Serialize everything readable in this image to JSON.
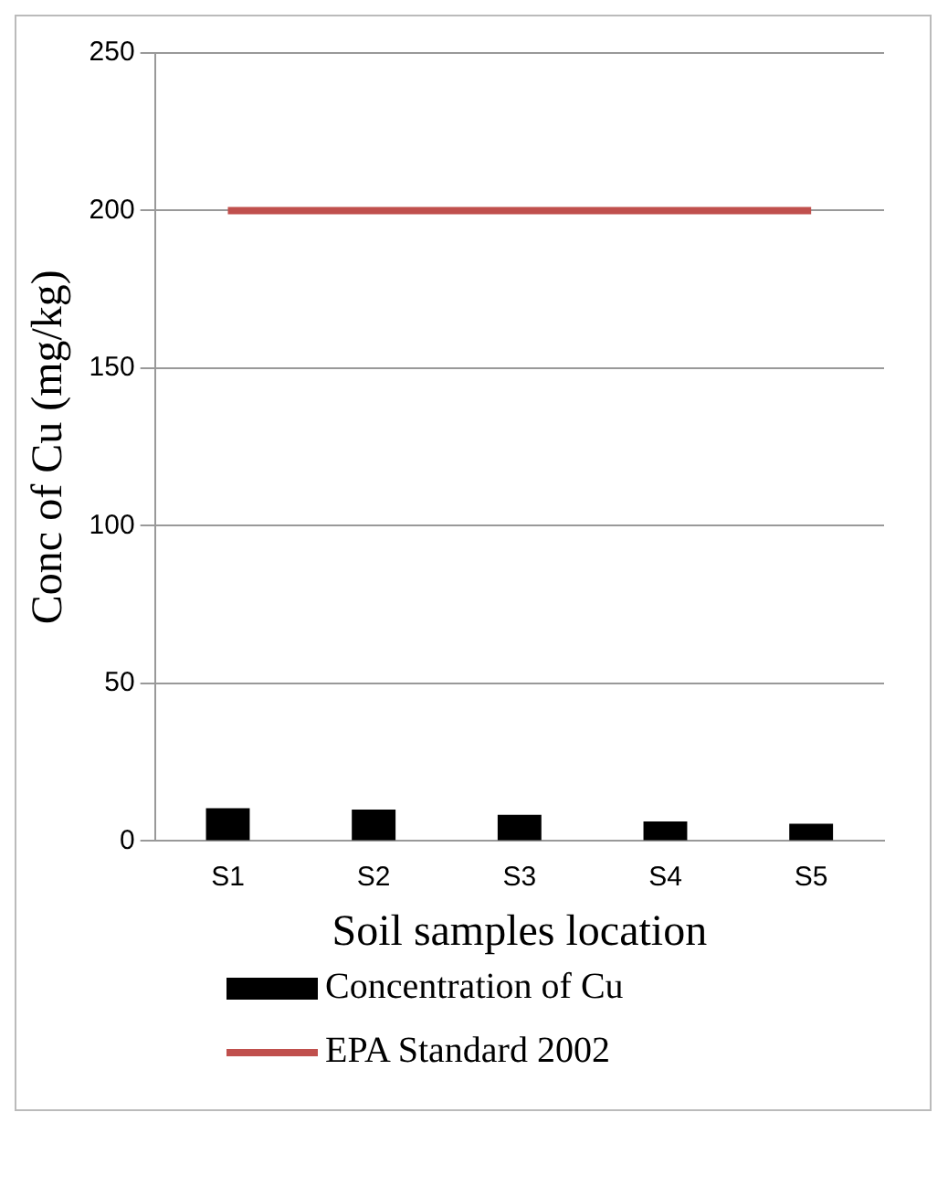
{
  "chart_data": {
    "type": "bar",
    "xlabel": "Soil samples location",
    "ylabel": "Conc of Cu (mg/kg)",
    "categories": [
      "S1",
      "S2",
      "S3",
      "S4",
      "S5"
    ],
    "series": [
      {
        "name": "Concentration of Cu",
        "color": "#000000",
        "values": [
          10.4,
          10,
          8.3,
          6.2,
          5.5
        ]
      },
      {
        "name": "EPA Standard 2002",
        "type": "line",
        "color": "#c0504d",
        "values": [
          200,
          200,
          200,
          200,
          200
        ]
      }
    ],
    "ylim": [
      0,
      250
    ],
    "yticks": [
      0,
      50,
      100,
      150,
      200,
      250
    ],
    "grid": "y",
    "legend": "bottom",
    "marker": "none"
  }
}
